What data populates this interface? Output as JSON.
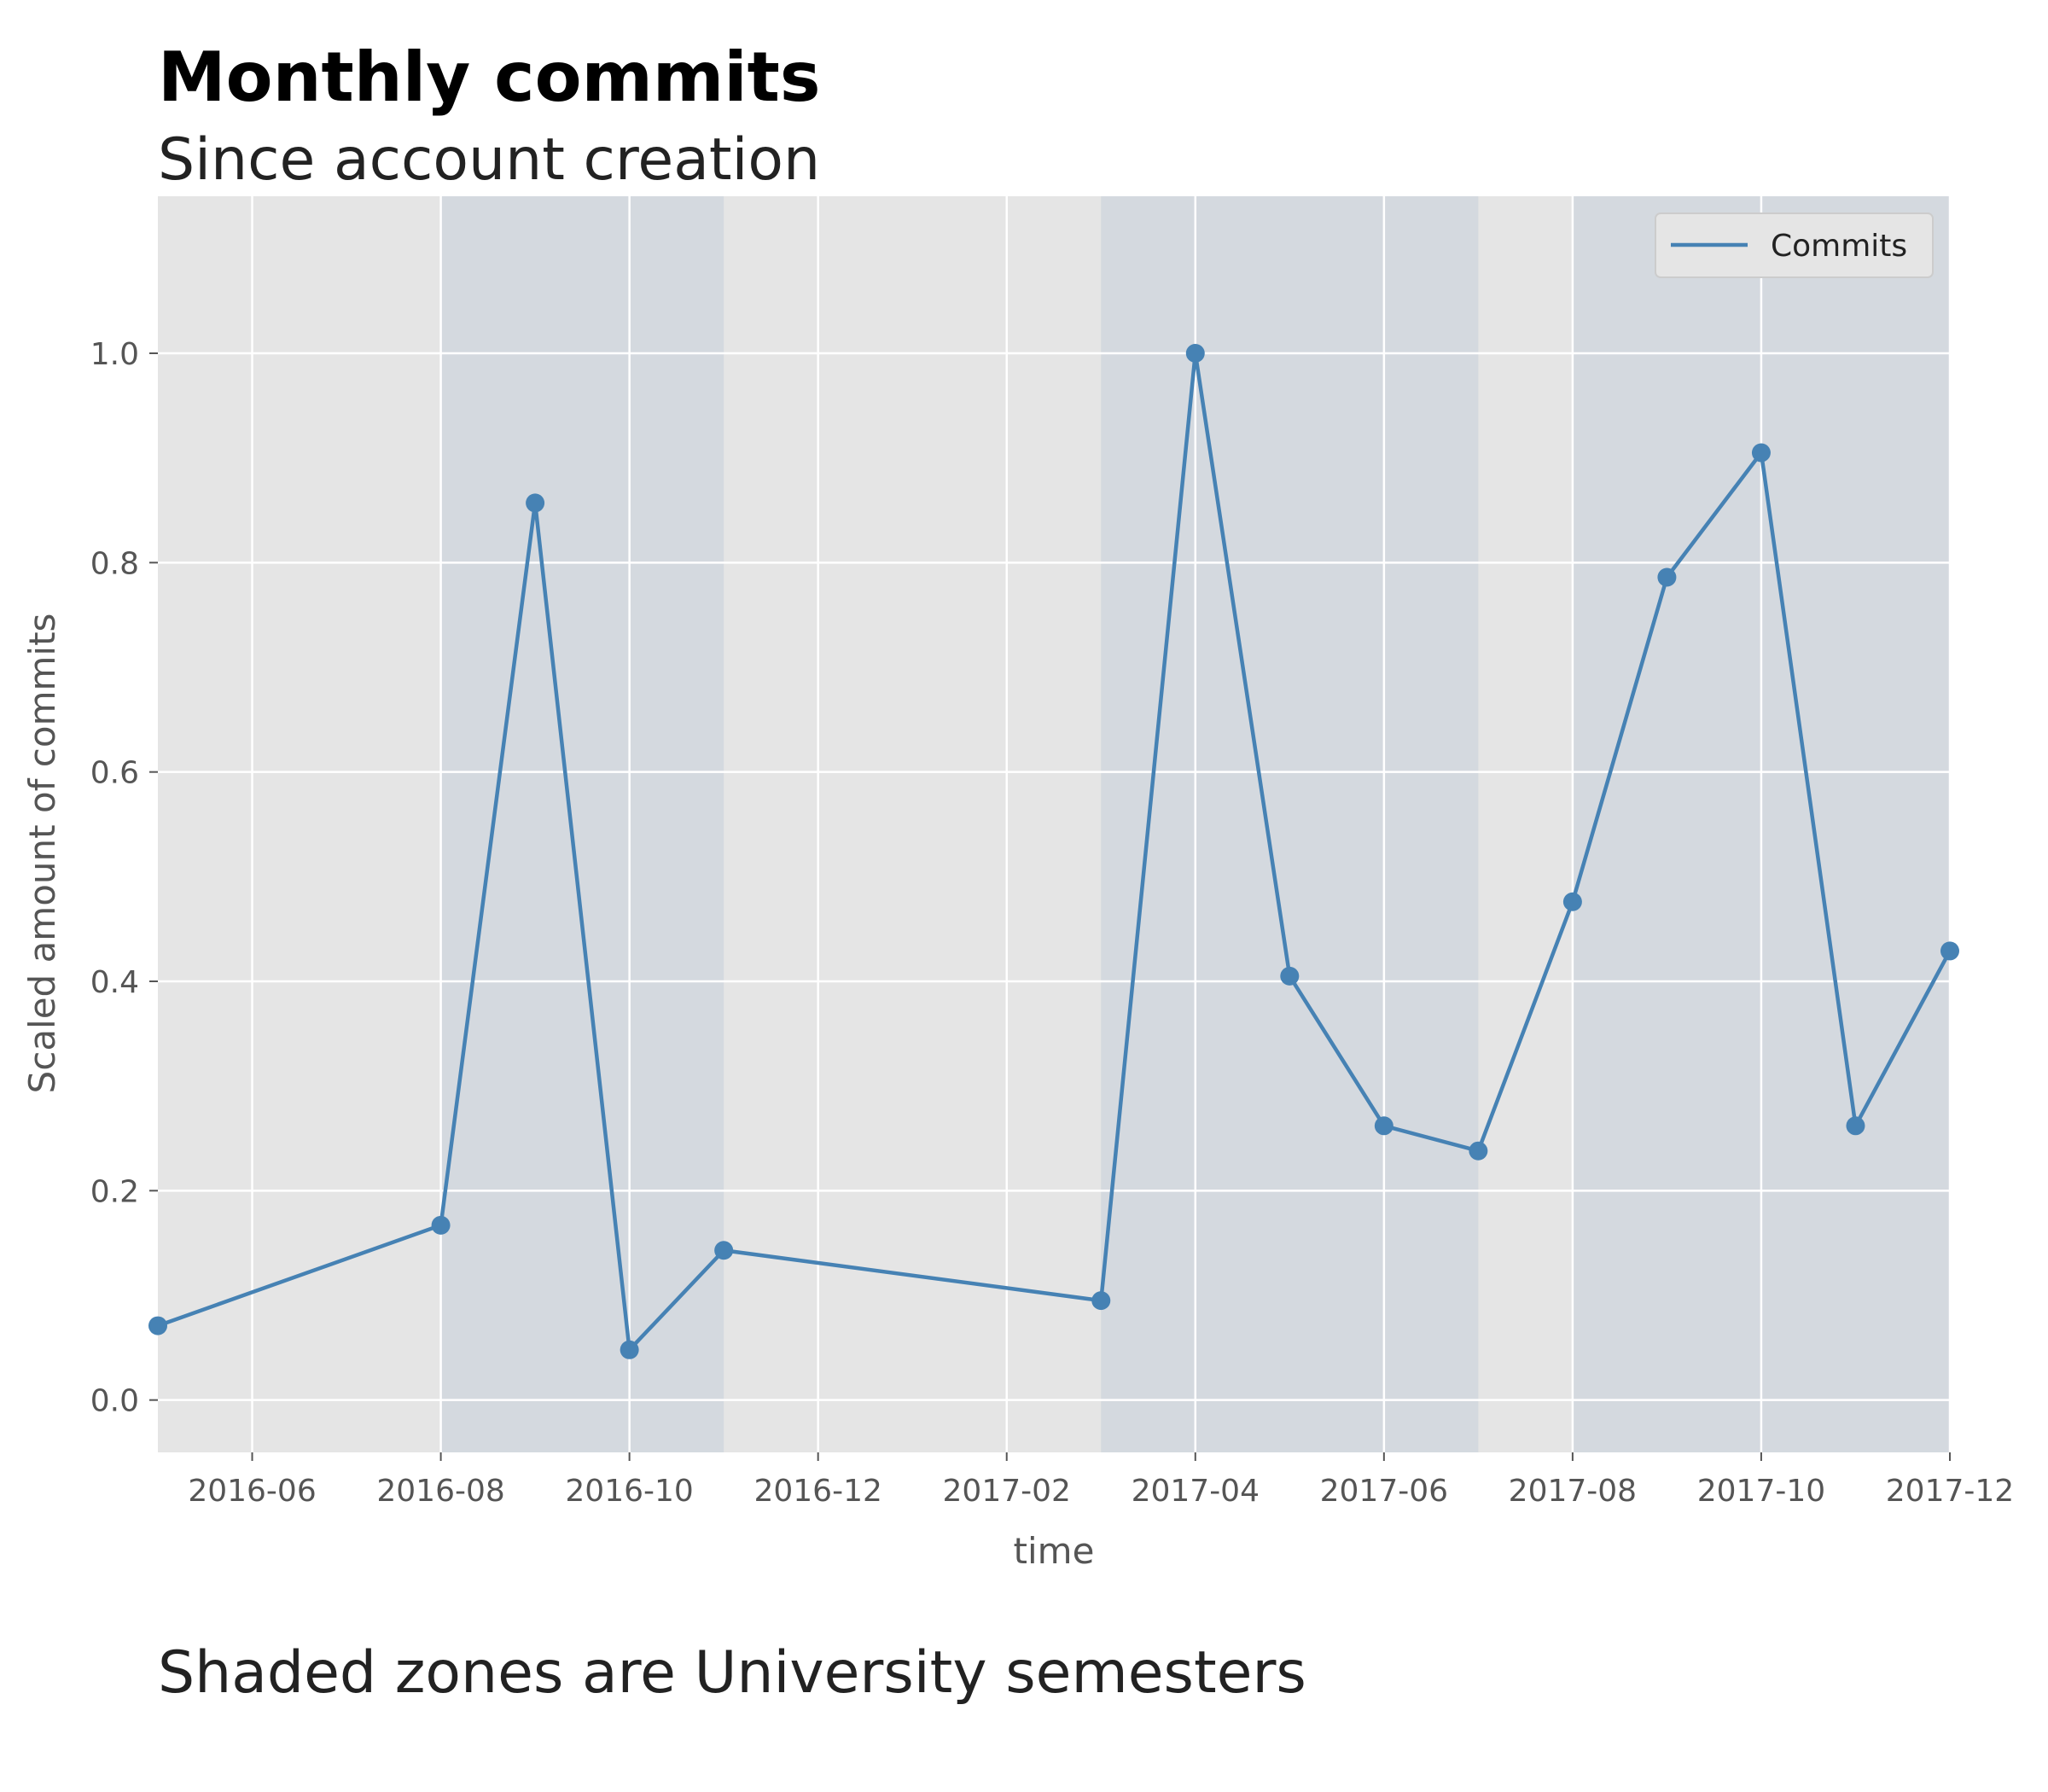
{
  "chart_data": {
    "type": "line",
    "title": "Monthly commits",
    "subtitle": "Since account creation",
    "caption": "Shaded zones are University semesters",
    "xlabel": "time",
    "ylabel": "Scaled amount of commits",
    "xlim": [
      "2016-05",
      "2017-12"
    ],
    "ylim": [
      -0.05,
      1.15
    ],
    "x_ticks": [
      "2016-06",
      "2016-08",
      "2016-10",
      "2016-12",
      "2017-02",
      "2017-04",
      "2017-06",
      "2017-08",
      "2017-10",
      "2017-12"
    ],
    "y_ticks": [
      "0.0",
      "0.2",
      "0.4",
      "0.6",
      "0.8",
      "1.0"
    ],
    "grid": true,
    "legend": "top-right",
    "shaded_ranges": [
      {
        "start": "2016-08",
        "end": "2016-11"
      },
      {
        "start": "2017-03",
        "end": "2017-07"
      },
      {
        "start": "2017-08",
        "end": "2017-12"
      }
    ],
    "series": [
      {
        "name": "Commits",
        "color": "#4682b4",
        "x": [
          "2016-05",
          "2016-08",
          "2016-09",
          "2016-10",
          "2016-11",
          "2017-03",
          "2017-04",
          "2017-05",
          "2017-06",
          "2017-07",
          "2017-08",
          "2017-09",
          "2017-10",
          "2017-11",
          "2017-12"
        ],
        "values": [
          0.071,
          0.167,
          0.857,
          0.048,
          0.143,
          0.095,
          1.0,
          0.405,
          0.262,
          0.238,
          0.476,
          0.786,
          0.905,
          0.262,
          0.429
        ]
      }
    ],
    "colors": {
      "plot_background": "#e5e5e5",
      "shade": "#d4d9df",
      "grid": "#ffffff"
    }
  }
}
